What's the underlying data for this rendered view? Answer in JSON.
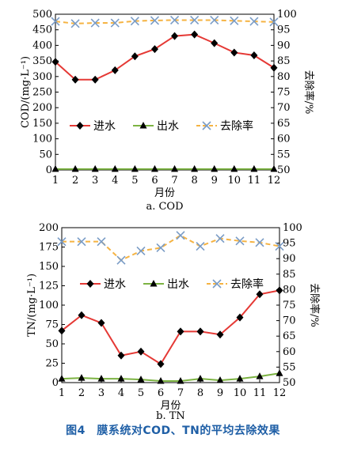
{
  "figure_caption": "图4　膜系统对COD、TN的平均去除效果",
  "chart_data": [
    {
      "type": "line",
      "subtitle": "a. COD",
      "xlabel": "月份",
      "ylabel_left": "COD/(mg·L⁻¹)",
      "ylabel_right": "去除率/%",
      "categories": [
        "1",
        "2",
        "3",
        "4",
        "5",
        "6",
        "7",
        "8",
        "9",
        "10",
        "11",
        "12"
      ],
      "y_left_lim": [
        0,
        500
      ],
      "y_left_ticks": [
        "0",
        "50",
        "100",
        "150",
        "200",
        "250",
        "300",
        "350",
        "400",
        "450",
        "500"
      ],
      "y_right_lim": [
        50,
        100
      ],
      "y_right_ticks": [
        "50",
        "55",
        "60",
        "65",
        "70",
        "75",
        "80",
        "85",
        "90",
        "95",
        "100"
      ],
      "grid": false,
      "legend": "left-middle",
      "series": [
        {
          "name": "进水",
          "axis": "left",
          "color": "#e53935",
          "marker": "diamond",
          "dash": "solid",
          "values": [
            347,
            290,
            290,
            320,
            365,
            388,
            430,
            435,
            407,
            377,
            368,
            328
          ]
        },
        {
          "name": "出水",
          "axis": "left",
          "color": "#7cb342",
          "marker": "triangle",
          "dash": "solid",
          "values": [
            3,
            3,
            3,
            3,
            3,
            3,
            3,
            3,
            3,
            3,
            3,
            3
          ]
        },
        {
          "name": "去除率",
          "axis": "right",
          "color": "#f5b342",
          "marker": "x",
          "markerColor": "#7a9cc6",
          "dash": "dashed",
          "values": [
            97.7,
            97.0,
            97.2,
            97.2,
            97.8,
            98.0,
            98.1,
            98.1,
            98.1,
            97.9,
            97.7,
            97.5
          ]
        }
      ]
    },
    {
      "type": "line",
      "subtitle": "b. TN",
      "xlabel": "月份",
      "ylabel_left": "TN/(mg·L⁻¹)",
      "ylabel_right": "去除率/%",
      "categories": [
        "1",
        "2",
        "3",
        "4",
        "5",
        "6",
        "7",
        "8",
        "9",
        "10",
        "11",
        "12"
      ],
      "y_left_lim": [
        0,
        200
      ],
      "y_left_ticks": [
        "0",
        "25",
        "50",
        "75",
        "100",
        "125",
        "150",
        "175",
        "200"
      ],
      "y_right_lim": [
        50,
        100
      ],
      "y_right_ticks": [
        "50",
        "55",
        "60",
        "65",
        "70",
        "75",
        "80",
        "85",
        "90",
        "95",
        "100"
      ],
      "grid": false,
      "legend": "top-right",
      "series": [
        {
          "name": "进水",
          "axis": "left",
          "color": "#e53935",
          "marker": "diamond",
          "dash": "solid",
          "values": [
            67,
            87,
            77,
            35,
            40,
            24,
            66,
            66,
            62,
            84,
            114,
            119
          ]
        },
        {
          "name": "出水",
          "axis": "left",
          "color": "#7cb342",
          "marker": "triangle",
          "dash": "solid",
          "values": [
            5,
            6,
            5,
            5,
            4,
            2,
            2,
            5,
            3,
            5,
            8,
            12
          ]
        },
        {
          "name": "去除率",
          "axis": "right",
          "color": "#f5b342",
          "marker": "x",
          "markerColor": "#7a9cc6",
          "dash": "dashed",
          "values": [
            95.5,
            95.5,
            95.5,
            89.5,
            92.5,
            93.5,
            97.5,
            94.0,
            96.5,
            95.7,
            95.2,
            94.0
          ]
        }
      ]
    }
  ]
}
